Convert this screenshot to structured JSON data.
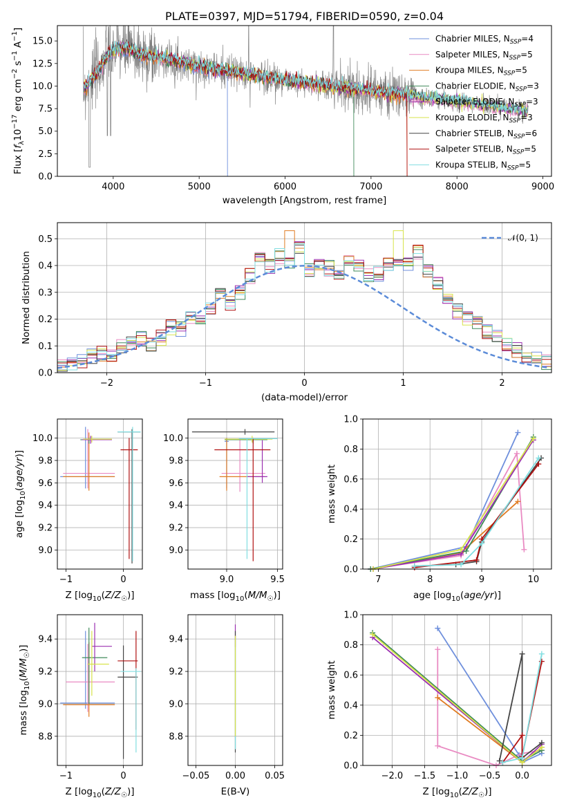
{
  "chart_data": [
    {
      "id": "spectrum",
      "type": "line",
      "title": "PLATE=0397, MJD=51794, FIBERID=0590, z=0.04",
      "xlabel": "wavelength [Angstrom, rest frame]",
      "ylabel": "Flux [fλ10⁻¹⁷ erg cm⁻² s⁻¹ A⁻¹]",
      "xlim": [
        3350,
        9100
      ],
      "ylim": [
        0,
        16.7
      ],
      "xticks": [
        4000,
        5000,
        6000,
        7000,
        8000,
        9000
      ],
      "yticks": [
        0.0,
        2.5,
        5.0,
        7.5,
        10.0,
        12.5,
        15.0
      ],
      "legend_position": "top-right",
      "series": [
        {
          "name": "Chabrier MILES, N_SSP=4",
          "color": "#6e8fdc"
        },
        {
          "name": "Salpeter MILES, N_SSP=5",
          "color": "#e98ac2"
        },
        {
          "name": "Kroupa MILES, N_SSP=5",
          "color": "#e07b22"
        },
        {
          "name": "Chabrier ELODIE, N_SSP=3",
          "color": "#3f8a5a"
        },
        {
          "name": "Salpeter ELODIE, N_SSP=3",
          "color": "#9b30b0"
        },
        {
          "name": "Kroupa ELODIE, N_SSP=3",
          "color": "#d7e34a"
        },
        {
          "name": "Chabrier STELIB, N_SSP=6",
          "color": "#444444"
        },
        {
          "name": "Salpeter STELIB, N_SSP=5",
          "color": "#b01010"
        },
        {
          "name": "Kroupa STELIB, N_SSP=5",
          "color": "#80dde0"
        }
      ],
      "data_series_color": "#808080",
      "model_envelope": {
        "x": [
          3650,
          3800,
          3950,
          4050,
          4200,
          4350,
          4500,
          4700,
          4900,
          5100,
          5300,
          5500,
          5700,
          5900,
          6100,
          6300,
          6500,
          6700,
          6900,
          7100,
          7300,
          7500,
          7700,
          7900,
          8100,
          8300,
          8500,
          8700,
          8820
        ],
        "y": [
          9.6,
          11.3,
          13.6,
          14.2,
          14.0,
          13.4,
          13.2,
          12.9,
          12.4,
          12.0,
          11.7,
          11.4,
          11.1,
          10.8,
          10.5,
          10.3,
          10.0,
          9.8,
          9.6,
          9.3,
          9.1,
          8.9,
          8.6,
          8.4,
          8.2,
          7.9,
          7.6,
          7.4,
          7.2
        ]
      }
    },
    {
      "id": "residuals",
      "type": "histogram",
      "xlabel": "(data-model)/error",
      "ylabel": "Normed distribution",
      "xlim": [
        -2.5,
        2.5
      ],
      "ylim": [
        0,
        0.56
      ],
      "xticks": [
        -2,
        -1,
        0,
        1,
        2
      ],
      "yticks": [
        0.0,
        0.1,
        0.2,
        0.3,
        0.4,
        0.5
      ],
      "legend": "𝒩(0, 1)",
      "legend_position": "top-right",
      "reference_color": "#5b8bd8",
      "bin_edges_start": -2.5,
      "bin_width": 0.1,
      "mean_heights": [
        0.035,
        0.025,
        0.045,
        0.06,
        0.07,
        0.06,
        0.1,
        0.115,
        0.125,
        0.105,
        0.13,
        0.17,
        0.165,
        0.2,
        0.205,
        0.235,
        0.285,
        0.255,
        0.3,
        0.36,
        0.43,
        0.4,
        0.435,
        0.405,
        0.465,
        0.38,
        0.41,
        0.39,
        0.37,
        0.42,
        0.4,
        0.37,
        0.37,
        0.4,
        0.42,
        0.41,
        0.45,
        0.38,
        0.33,
        0.27,
        0.23,
        0.205,
        0.18,
        0.15,
        0.13,
        0.1,
        0.085,
        0.065,
        0.05,
        0.04
      ]
    },
    {
      "id": "age-vs-Z",
      "type": "scatter",
      "xlabel": "Z [log10(Z/Z☉)]",
      "ylabel": "age  [log10(age/yr)]",
      "xlim": [
        -1.15,
        0.33
      ],
      "ylim": [
        8.83,
        10.17
      ],
      "xticks": [
        -1,
        0
      ],
      "yticks": [
        9.0,
        9.2,
        9.4,
        9.6,
        9.8,
        10.0
      ],
      "points": [
        {
          "c": 0,
          "x": -0.66,
          "y": 9.655,
          "xe": [
            -1.1,
            -0.15
          ],
          "ye": [
            9.55,
            10.1
          ]
        },
        {
          "c": 1,
          "x": -0.62,
          "y": 9.685,
          "xe": [
            -1.05,
            -0.15
          ],
          "ye": [
            9.55,
            10.08
          ]
        },
        {
          "c": 2,
          "x": -0.6,
          "y": 9.655,
          "xe": [
            -1.05,
            -0.15
          ],
          "ye": [
            9.53,
            10.05
          ]
        },
        {
          "c": 3,
          "x": -0.6,
          "y": 9.985,
          "xe": [
            -0.75,
            -0.2
          ],
          "ye": [
            9.95,
            10.0
          ]
        },
        {
          "c": 4,
          "x": -0.57,
          "y": 9.985,
          "xe": [
            -0.72,
            -0.2
          ],
          "ye": [
            9.95,
            10.02
          ]
        },
        {
          "c": 5,
          "x": -0.55,
          "y": 9.99,
          "xe": [
            -0.7,
            -0.2
          ],
          "ye": [
            9.96,
            10.02
          ]
        },
        {
          "c": 6,
          "x": 0.15,
          "y": 10.055,
          "xe": [
            -0.1,
            0.3
          ],
          "ye": [
            8.88,
            10.08
          ]
        },
        {
          "c": 7,
          "x": 0.1,
          "y": 9.895,
          "xe": [
            -0.05,
            0.25
          ],
          "ye": [
            8.92,
            10.0
          ]
        },
        {
          "c": 8,
          "x": 0.16,
          "y": 10.055,
          "xe": [
            -0.1,
            0.3
          ],
          "ye": [
            8.9,
            10.1
          ]
        }
      ]
    },
    {
      "id": "age-vs-mass",
      "type": "scatter",
      "xlabel": "mass [log10(M/M☉)]",
      "ylabel": "",
      "xlim": [
        8.62,
        9.55
      ],
      "ylim": [
        8.83,
        10.17
      ],
      "xticks": [
        9.0,
        9.5
      ],
      "yticks": [
        9.0,
        9.2,
        9.4,
        9.6,
        9.8,
        10.0
      ],
      "points": [
        {
          "c": 0,
          "x": 9.0,
          "y": 9.97,
          "xe": [
            8.98,
            9.02
          ],
          "ye": [
            9.55,
            10.0
          ]
        },
        {
          "c": 1,
          "x": 9.13,
          "y": 9.685,
          "xe": [
            8.95,
            9.38
          ],
          "ye": [
            9.52,
            10.0
          ]
        },
        {
          "c": 2,
          "x": 9.0,
          "y": 9.655,
          "xe": [
            8.93,
            9.37
          ],
          "ye": [
            9.53,
            10.0
          ]
        },
        {
          "c": 3,
          "x": 9.26,
          "y": 9.985,
          "xe": [
            8.98,
            9.4
          ],
          "ye": [
            9.95,
            10.0
          ]
        },
        {
          "c": 4,
          "x": 9.35,
          "y": 9.655,
          "xe": [
            9.2,
            9.4
          ],
          "ye": [
            9.6,
            9.98
          ]
        },
        {
          "c": 5,
          "x": 9.25,
          "y": 9.99,
          "xe": [
            8.98,
            9.45
          ],
          "ye": [
            9.96,
            10.02
          ]
        },
        {
          "c": 6,
          "x": 9.18,
          "y": 10.055,
          "xe": [
            8.66,
            9.47
          ],
          "ye": [
            10.03,
            10.08
          ]
        },
        {
          "c": 7,
          "x": 9.26,
          "y": 9.895,
          "xe": [
            8.88,
            9.43
          ],
          "ye": [
            8.9,
            10.0
          ]
        },
        {
          "c": 8,
          "x": 9.2,
          "y": 9.995,
          "xe": [
            9.12,
            9.5
          ],
          "ye": [
            8.92,
            10.0
          ]
        }
      ]
    },
    {
      "id": "weight-vs-age",
      "type": "line",
      "xlabel": "age  [log10(age/yr)]",
      "ylabel": "mass weight",
      "xlim": [
        6.7,
        10.35
      ],
      "ylim": [
        0,
        1
      ],
      "xticks": [
        7,
        8,
        9,
        10
      ],
      "yticks": [
        0.0,
        0.2,
        0.4,
        0.6,
        0.8,
        1.0
      ],
      "series": [
        {
          "c": 0,
          "points": [
            [
              6.85,
              0.0
            ],
            [
              8.7,
              0.15
            ],
            [
              9.7,
              0.91
            ]
          ]
        },
        {
          "c": 1,
          "points": [
            [
              6.85,
              0.0
            ],
            [
              8.6,
              0.09
            ],
            [
              9.68,
              0.77
            ],
            [
              9.82,
              0.13
            ]
          ]
        },
        {
          "c": 2,
          "points": [
            [
              6.9,
              0.0
            ],
            [
              8.6,
              0.11
            ],
            [
              9.7,
              0.45
            ]
          ]
        },
        {
          "c": 3,
          "points": [
            [
              6.85,
              0.0
            ],
            [
              8.7,
              0.12
            ],
            [
              10.0,
              0.88
            ]
          ]
        },
        {
          "c": 4,
          "points": [
            [
              6.9,
              0.0
            ],
            [
              8.6,
              0.1
            ],
            [
              10.0,
              0.86
            ]
          ]
        },
        {
          "c": 5,
          "points": [
            [
              6.9,
              0.0
            ],
            [
              8.6,
              0.13
            ],
            [
              10.0,
              0.87
            ]
          ]
        },
        {
          "c": 6,
          "points": [
            [
              7.7,
              0.02
            ],
            [
              8.5,
              0.03
            ],
            [
              8.9,
              0.05
            ],
            [
              9.0,
              0.18
            ],
            [
              10.15,
              0.74
            ]
          ]
        },
        {
          "c": 7,
          "points": [
            [
              7.7,
              0.01
            ],
            [
              8.9,
              0.06
            ],
            [
              9.0,
              0.2
            ],
            [
              10.1,
              0.7
            ]
          ]
        },
        {
          "c": 8,
          "points": [
            [
              7.7,
              0.02
            ],
            [
              8.6,
              0.03
            ],
            [
              9.0,
              0.17
            ],
            [
              10.1,
              0.74
            ]
          ]
        }
      ]
    },
    {
      "id": "mass-vs-Z",
      "type": "scatter",
      "xlabel": "Z [log10(Z/Z☉)]",
      "ylabel": "mass [log10(M/M☉)]",
      "xlim": [
        -1.15,
        0.33
      ],
      "ylim": [
        8.62,
        9.55
      ],
      "xticks": [
        -1,
        0
      ],
      "yticks": [
        8.8,
        9.0,
        9.2,
        9.4
      ],
      "points": [
        {
          "c": 0,
          "x": -0.66,
          "y": 9.005,
          "xe": [
            -1.1,
            -0.15
          ],
          "ye": [
            8.97,
            9.45
          ]
        },
        {
          "c": 1,
          "x": -0.62,
          "y": 9.135,
          "xe": [
            -1.0,
            -0.15
          ],
          "ye": [
            8.95,
            9.37
          ]
        },
        {
          "c": 2,
          "x": -0.6,
          "y": 8.995,
          "xe": [
            -1.05,
            -0.15
          ],
          "ye": [
            8.92,
            9.38
          ]
        },
        {
          "c": 3,
          "x": -0.6,
          "y": 9.285,
          "xe": [
            -0.72,
            -0.28
          ],
          "ye": [
            9.0,
            9.47
          ]
        },
        {
          "c": 4,
          "x": -0.5,
          "y": 9.355,
          "xe": [
            -0.55,
            -0.2
          ],
          "ye": [
            9.2,
            9.5
          ]
        },
        {
          "c": 5,
          "x": -0.55,
          "y": 9.245,
          "xe": [
            -0.62,
            -0.25
          ],
          "ye": [
            9.05,
            9.45
          ]
        },
        {
          "c": 6,
          "x": 0.0,
          "y": 9.165,
          "xe": [
            -0.1,
            0.25
          ],
          "ye": [
            8.66,
            9.36
          ]
        },
        {
          "c": 7,
          "x": 0.22,
          "y": 9.265,
          "xe": [
            -0.1,
            0.25
          ],
          "ye": [
            8.84,
            9.45
          ]
        },
        {
          "c": 8,
          "x": 0.22,
          "y": 9.2,
          "xe": [
            -0.05,
            0.3
          ],
          "ye": [
            8.7,
            9.22
          ]
        }
      ]
    },
    {
      "id": "mass-vs-EBV",
      "type": "scatter",
      "xlabel": "E(B-V)",
      "ylabel": "",
      "xlim": [
        -0.06,
        0.06
      ],
      "ylim": [
        8.62,
        9.55
      ],
      "xticks": [
        -0.05,
        0.0,
        0.05
      ],
      "yticks": [
        8.8,
        9.0,
        9.2,
        9.4
      ],
      "points": [
        {
          "c": 4,
          "x": 0.0,
          "y": 9.4,
          "xe": [
            0.0,
            0.0
          ],
          "ye": [
            9.35,
            9.49
          ]
        },
        {
          "c": 6,
          "x": 0.0,
          "y": 9.3,
          "xe": [
            0.0,
            0.0
          ],
          "ye": [
            8.7,
            9.45
          ]
        },
        {
          "c": 8,
          "x": 0.0,
          "y": 9.2,
          "xe": [
            0.0,
            0.0
          ],
          "ye": [
            8.72,
            9.4
          ]
        },
        {
          "c": 5,
          "x": 0.0,
          "y": 9.1,
          "xe": [
            0.0,
            0.0
          ],
          "ye": [
            8.8,
            9.42
          ]
        }
      ]
    },
    {
      "id": "weight-vs-Z",
      "type": "line",
      "xlabel": "Z [log10(Z/Z☉)]",
      "ylabel": "mass weight",
      "xlim": [
        -2.45,
        0.45
      ],
      "ylim": [
        0,
        1
      ],
      "xticks": [
        -2.0,
        -1.5,
        -1.0,
        -0.5,
        0.0
      ],
      "yticks": [
        0.0,
        0.2,
        0.4,
        0.6,
        0.8,
        1.0
      ],
      "series": [
        {
          "c": 0,
          "points": [
            [
              -1.3,
              0.91
            ],
            [
              -0.05,
              0.07
            ],
            [
              0.0,
              0.02
            ],
            [
              0.3,
              0.08
            ]
          ]
        },
        {
          "c": 1,
          "points": [
            [
              -1.3,
              0.77
            ],
            [
              -1.3,
              0.13
            ],
            [
              -0.4,
              0.0
            ],
            [
              0.0,
              0.08
            ],
            [
              0.3,
              0.1
            ]
          ]
        },
        {
          "c": 2,
          "points": [
            [
              -1.3,
              0.45
            ],
            [
              0.0,
              0.02
            ],
            [
              0.3,
              0.12
            ]
          ]
        },
        {
          "c": 3,
          "points": [
            [
              -2.3,
              0.88
            ],
            [
              0.0,
              0.03
            ],
            [
              0.3,
              0.1
            ]
          ]
        },
        {
          "c": 4,
          "points": [
            [
              -2.3,
              0.85
            ],
            [
              0.0,
              0.02
            ],
            [
              0.3,
              0.14
            ]
          ]
        },
        {
          "c": 5,
          "points": [
            [
              -2.3,
              0.87
            ],
            [
              0.0,
              0.02
            ],
            [
              0.3,
              0.12
            ]
          ]
        },
        {
          "c": 6,
          "points": [
            [
              -0.35,
              0.03
            ],
            [
              0.0,
              0.74
            ],
            [
              0.0,
              0.05
            ],
            [
              0.3,
              0.15
            ]
          ]
        },
        {
          "c": 7,
          "points": [
            [
              -0.3,
              0.02
            ],
            [
              0.0,
              0.2
            ],
            [
              0.0,
              0.06
            ],
            [
              0.3,
              0.69
            ]
          ]
        },
        {
          "c": 8,
          "points": [
            [
              -0.3,
              0.02
            ],
            [
              0.0,
              0.05
            ],
            [
              0.3,
              0.74
            ]
          ]
        }
      ]
    }
  ]
}
